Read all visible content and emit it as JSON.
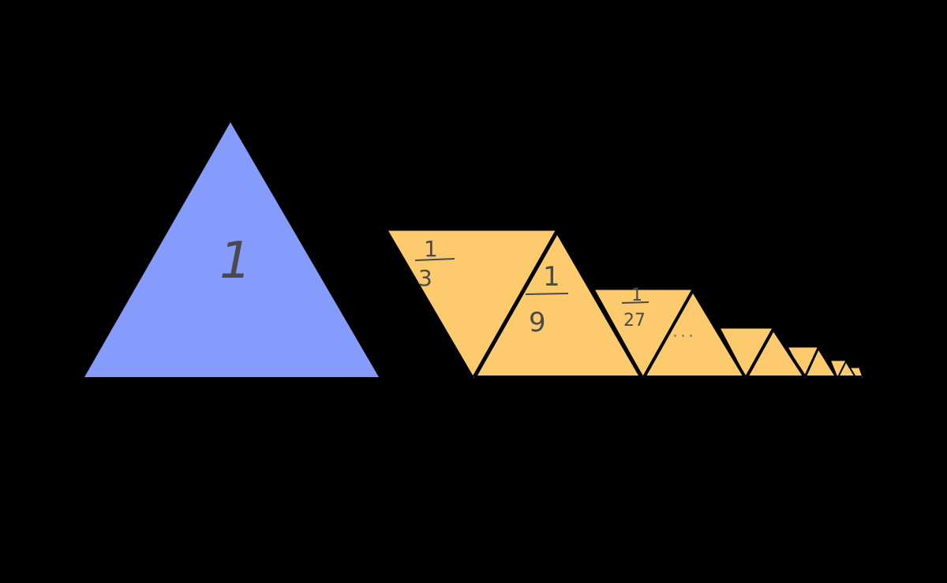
{
  "colors": {
    "background": "#000000",
    "big_triangle": "#869cfc",
    "small_triangles": "#fdcb6e",
    "outline": "#000000",
    "handwriting": "#4a4a4a"
  },
  "labels": {
    "whole": "1",
    "third_num": "1",
    "third_den": "3",
    "ninth_num": "1",
    "ninth_den": "9",
    "twentyseventh_num": "1",
    "twentyseventh_den": "27",
    "ellipsis": "..."
  }
}
